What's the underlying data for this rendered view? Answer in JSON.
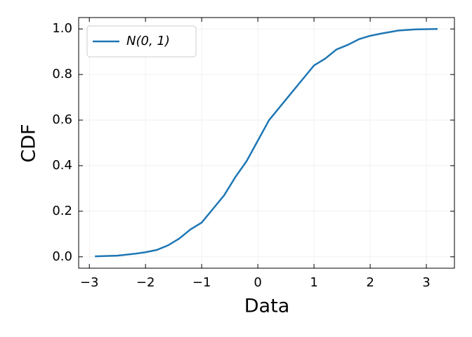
{
  "chart_data": {
    "type": "line",
    "x_label": "Data",
    "y_label": "CDF",
    "series": [
      {
        "name": "N(0, 1)",
        "color": "#1f77b4",
        "x": [
          -2.9,
          -2.5,
          -2.2,
          -2.0,
          -1.8,
          -1.6,
          -1.4,
          -1.2,
          -1.0,
          -0.8,
          -0.6,
          -0.4,
          -0.2,
          0.0,
          0.2,
          0.4,
          0.6,
          0.8,
          1.0,
          1.2,
          1.4,
          1.6,
          1.8,
          2.0,
          2.2,
          2.5,
          2.8,
          3.2
        ],
        "values": [
          0.002,
          0.005,
          0.013,
          0.02,
          0.03,
          0.05,
          0.08,
          0.12,
          0.15,
          0.21,
          0.27,
          0.35,
          0.42,
          0.51,
          0.6,
          0.66,
          0.72,
          0.78,
          0.84,
          0.87,
          0.91,
          0.93,
          0.955,
          0.97,
          0.98,
          0.993,
          0.998,
          1.0
        ]
      }
    ],
    "xlim": [
      -3.19,
      3.5
    ],
    "ylim": [
      -0.05,
      1.05
    ],
    "xticks": [
      {
        "value": -3,
        "label": "−3"
      },
      {
        "value": -2,
        "label": "−2"
      },
      {
        "value": -1,
        "label": "−1"
      },
      0,
      1,
      2,
      3
    ],
    "yticks": [
      {
        "value": 0,
        "label": "0.0"
      },
      {
        "value": 0.2,
        "label": "0.2"
      },
      {
        "value": 0.4,
        "label": "0.4"
      },
      {
        "value": 0.6,
        "label": "0.6"
      },
      {
        "value": 0.8,
        "label": "0.8"
      },
      {
        "value": 1.0,
        "label": "1.0"
      }
    ],
    "grid": true,
    "legend": "upper-left"
  }
}
